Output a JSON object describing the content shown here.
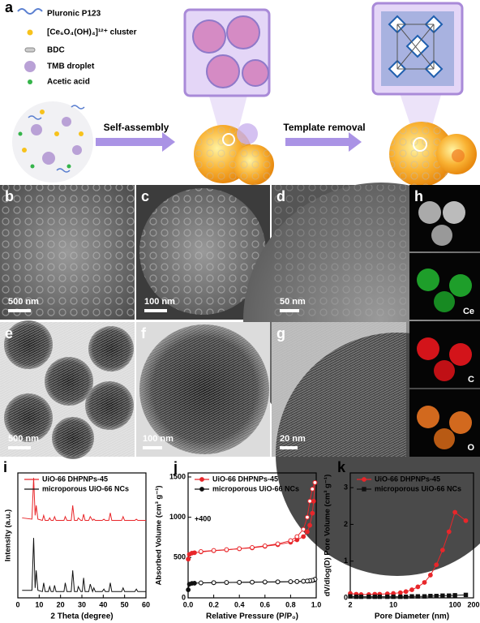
{
  "schematic": {
    "panel": "a",
    "legend": [
      "Pluronic P123",
      "[Ce₆O₄(OH)₄]¹²⁺ cluster",
      "BDC",
      "TMB droplet",
      "Acetic acid"
    ],
    "steps": [
      "Self-assembly",
      "Template removal"
    ]
  },
  "micrographs": [
    {
      "panel": "b",
      "scale": "500 nm"
    },
    {
      "panel": "c",
      "scale": "100 nm"
    },
    {
      "panel": "d",
      "scale": "50 nm"
    },
    {
      "panel": "e",
      "scale": "500 nm"
    },
    {
      "panel": "f",
      "scale": "100 nm"
    },
    {
      "panel": "g",
      "scale": "20 nm"
    },
    {
      "panel": "h",
      "elements": [
        "Ce",
        "C",
        "O"
      ]
    }
  ],
  "chart_data": [
    {
      "type": "line",
      "panel": "i",
      "x_label": "2 Theta (degree)",
      "y_label": "Intensity (a.u.)",
      "xlim": [
        0,
        60
      ],
      "xticks": [
        0,
        10,
        20,
        30,
        40,
        50,
        60
      ],
      "ylim": [
        0,
        100
      ],
      "x": [
        2,
        6.6,
        7.4,
        8.1,
        8.6,
        9.4,
        11.5,
        12.1,
        12.8,
        14.3,
        14.9,
        15.6,
        16.6,
        17.2,
        17.9,
        21.6,
        22.2,
        23,
        25,
        25.7,
        26.5,
        27.8,
        28.3,
        29.5,
        30.2,
        30.8,
        31.5,
        33.2,
        33.9,
        35,
        35.6,
        36.3,
        39.5,
        40.3,
        41,
        42.6,
        43.3,
        44,
        48.6,
        49.3,
        50,
        54.8,
        55.5,
        56.2,
        60
      ],
      "series": [
        {
          "name": "UiO-66 DHPNPs-45",
          "color": "#e8262a",
          "marker": "none",
          "values": [
            64,
            63,
            96,
            66,
            74,
            63,
            62,
            66,
            62,
            62,
            64,
            62,
            62,
            65,
            62,
            62,
            65,
            62,
            62,
            74,
            62,
            62,
            64,
            62,
            62,
            67,
            62,
            62,
            65,
            62,
            63,
            62,
            62,
            63,
            62,
            62,
            68,
            62,
            62,
            65,
            62,
            62,
            63,
            62,
            62
          ]
        },
        {
          "name": "microporous UiO-66 NCs",
          "color": "#111111",
          "marker": "none",
          "values": [
            6,
            6,
            48,
            8,
            22,
            6,
            5,
            12,
            5,
            5,
            9,
            5,
            5,
            10,
            5,
            5,
            12,
            5,
            5,
            22,
            5,
            5,
            9,
            5,
            5,
            16,
            5,
            5,
            11,
            5,
            8,
            5,
            5,
            7,
            5,
            5,
            12,
            5,
            5,
            8,
            5,
            5,
            7,
            5,
            5
          ]
        }
      ]
    },
    {
      "type": "line",
      "panel": "j",
      "x_label": "Relative Pressure (P/P₀)",
      "y_label": "Absorbed Volume (cm³ g⁻¹)",
      "annotation": "+400",
      "xlim": [
        0,
        1
      ],
      "xticks": [
        {
          "value": 0,
          "label": "0.0"
        },
        0.2,
        0.4,
        0.6,
        0.8,
        {
          "value": 1,
          "label": "1.0"
        }
      ],
      "ylim": [
        0,
        1550
      ],
      "yticks": [
        0,
        500,
        1000,
        1500
      ],
      "series": [
        {
          "name": "UiO-66 DHPNPs-45",
          "color": "#e8262a",
          "marker": "circle",
          "x": [
            0.001,
            0.01,
            0.03,
            0.05,
            0.1,
            0.2,
            0.3,
            0.4,
            0.5,
            0.6,
            0.7,
            0.8,
            0.85,
            0.9,
            0.93,
            0.95,
            0.97,
            0.98,
            0.99
          ],
          "values": [
            480,
            540,
            555,
            560,
            570,
            585,
            595,
            610,
            620,
            640,
            660,
            690,
            720,
            760,
            820,
            900,
            1050,
            1200,
            1430
          ],
          "desorption_x": [
            0.99,
            0.97,
            0.95,
            0.93,
            0.9,
            0.85,
            0.8,
            0.7,
            0.6,
            0.5,
            0.4,
            0.3,
            0.2,
            0.1
          ],
          "desorption_values": [
            1430,
            1350,
            1200,
            1000,
            850,
            760,
            710,
            670,
            645,
            625,
            610,
            598,
            588,
            575
          ]
        },
        {
          "name": "microporous UiO-66 NCs",
          "color": "#111111",
          "marker": "circle",
          "x": [
            0.001,
            0.01,
            0.03,
            0.05,
            0.1,
            0.2,
            0.3,
            0.4,
            0.5,
            0.6,
            0.7,
            0.8,
            0.85,
            0.9,
            0.93,
            0.95,
            0.97,
            0.98,
            0.99
          ],
          "values": [
            100,
            170,
            180,
            182,
            185,
            188,
            190,
            192,
            194,
            196,
            198,
            200,
            202,
            205,
            208,
            210,
            215,
            220,
            230
          ],
          "desorption_x": [
            0.99,
            0.97,
            0.95,
            0.93,
            0.9,
            0.85,
            0.8,
            0.7,
            0.6,
            0.5,
            0.4,
            0.3,
            0.2,
            0.1
          ],
          "desorption_values": [
            230,
            218,
            212,
            209,
            206,
            203,
            201,
            199,
            197,
            195,
            193,
            191,
            189,
            186
          ]
        }
      ]
    },
    {
      "type": "line",
      "panel": "k",
      "x_label": "Pore Diameter (nm)",
      "y_label": "dV/dlog(D) Pore Volume (cm³ g⁻¹)",
      "log_x": true,
      "xlim": [
        2,
        200
      ],
      "xticks": [
        2,
        10,
        100,
        200
      ],
      "ylim": [
        0,
        3.4
      ],
      "yticks": [
        0,
        1,
        2,
        3
      ],
      "series": [
        {
          "name": "UiO-66 DHPNPs-45",
          "color": "#e8262a",
          "marker": "circle",
          "x": [
            2,
            2.5,
            3,
            4,
            5,
            6,
            8,
            10,
            13,
            16,
            20,
            25,
            32,
            40,
            50,
            63,
            80,
            100,
            150
          ],
          "values": [
            0.12,
            0.1,
            0.09,
            0.09,
            0.1,
            0.1,
            0.11,
            0.12,
            0.14,
            0.17,
            0.22,
            0.3,
            0.42,
            0.62,
            0.9,
            1.3,
            1.8,
            2.33,
            2.1
          ]
        },
        {
          "name": "microporous UiO-66 NCs",
          "color": "#111111",
          "marker": "square",
          "x": [
            2,
            2.5,
            3,
            4,
            5,
            6,
            8,
            10,
            13,
            16,
            20,
            25,
            32,
            40,
            50,
            63,
            80,
            100,
            150
          ],
          "values": [
            0.04,
            0.03,
            0.03,
            0.03,
            0.03,
            0.03,
            0.03,
            0.03,
            0.03,
            0.03,
            0.04,
            0.04,
            0.04,
            0.05,
            0.05,
            0.06,
            0.06,
            0.07,
            0.08
          ]
        }
      ]
    }
  ]
}
